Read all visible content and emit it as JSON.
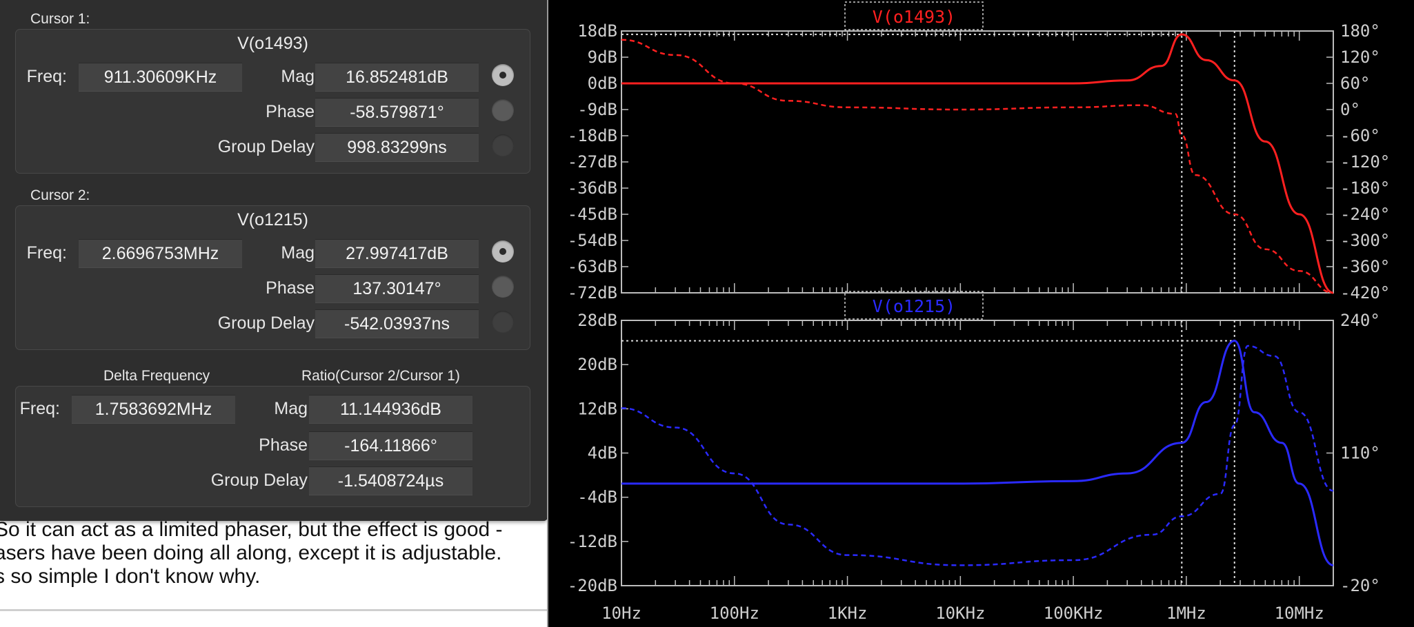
{
  "background_text": {
    "lines": [
      "So it can act as a limited phaser, but the effect is good -",
      "asers have been doing all along, except it is adjustable.",
      "s so simple I don't know why."
    ]
  },
  "cursor_panel": {
    "cursor1": {
      "heading": "Cursor 1:",
      "trace": "V(o1493)",
      "freq_label": "Freq:",
      "freq": "911.30609KHz",
      "mag_label": "Mag:",
      "mag": "16.852481dB",
      "phase_label": "Phase:",
      "phase": "-58.579871°",
      "gd_label": "Group Delay:",
      "gd": "998.83299ns",
      "selected": "mag"
    },
    "cursor2": {
      "heading": "Cursor 2:",
      "trace": "V(o1215)",
      "freq_label": "Freq:",
      "freq": "2.6696753MHz",
      "mag_label": "Mag:",
      "mag": "27.997417dB",
      "phase_label": "Phase:",
      "phase": "137.30147°",
      "gd_label": "Group Delay:",
      "gd": "-542.03937ns",
      "selected": "mag"
    },
    "delta": {
      "delta_heading": "Delta Frequency",
      "ratio_heading": "Ratio(Cursor 2/Cursor 1)",
      "freq_label": "Freq:",
      "freq": "1.7583692MHz",
      "mag_label": "Mag:",
      "mag": "11.144936dB",
      "phase_label": "Phase:",
      "phase": "-164.11866°",
      "gd_label": "Group Delay:",
      "gd": "-1.5408724µs"
    }
  },
  "plot": {
    "x_ticks": [
      "10Hz",
      "100Hz",
      "1KHz",
      "10KHz",
      "100KHz",
      "1MHz",
      "10MHz"
    ],
    "top": {
      "title": "V(o1493)",
      "color": "#ff2020",
      "mag_ticks": [
        "18dB",
        "9dB",
        "0dB",
        "-9dB",
        "-18dB",
        "-27dB",
        "-36dB",
        "-45dB",
        "-54dB",
        "-63dB",
        "-72dB"
      ],
      "phase_ticks": [
        "180°",
        "120°",
        "60°",
        "0°",
        "-60°",
        "-120°",
        "-180°",
        "-240°",
        "-300°",
        "-360°",
        "-420°"
      ]
    },
    "bottom": {
      "title": "V(o1215)",
      "color": "#2a2aff",
      "mag_ticks": [
        "28dB",
        "20dB",
        "12dB",
        "4dB",
        "-4dB",
        "-12dB",
        "-20dB"
      ],
      "phase_ticks": [
        "240°",
        "110°",
        "-20°"
      ]
    },
    "cursor1_freq_hz": 911306,
    "cursor2_freq_hz": 2669675
  },
  "chart_data": [
    {
      "type": "line",
      "title": "V(o1493)",
      "x_scale": "log",
      "xlim": [
        10,
        20000000
      ],
      "ylim": [
        -72,
        18
      ],
      "y2lim": [
        -420,
        180
      ],
      "series": [
        {
          "x": [
            10,
            100,
            1000,
            10000,
            100000,
            300000,
            600000,
            911306,
            1500000,
            2669675,
            5000000,
            10000000,
            20000000
          ],
          "y": [
            0,
            0,
            0,
            0,
            0,
            1,
            6,
            16.85,
            8,
            1,
            -20,
            -45,
            -72
          ]
        },
        {
          "x": [
            10,
            30,
            100,
            300,
            1000,
            10000,
            100000,
            400000,
            800000,
            911306,
            1200000,
            2669675,
            5000000,
            10000000,
            20000000
          ],
          "y": [
            160,
            125,
            60,
            20,
            5,
            0,
            5,
            10,
            -10,
            -58.58,
            -150,
            -240,
            -320,
            -370,
            -420
          ]
        }
      ]
    },
    {
      "type": "line",
      "title": "V(o1215)",
      "x_scale": "log",
      "xlim": [
        10,
        20000000
      ],
      "ylim": [
        -20,
        32
      ],
      "y2lim": [
        -20,
        240
      ],
      "series": [
        {
          "x": [
            10,
            100,
            1000,
            10000,
            100000,
            300000,
            911306,
            1500000,
            2669675,
            4000000,
            7000000,
            10000000,
            20000000
          ],
          "y": [
            0,
            0,
            0,
            0,
            0.5,
            2,
            8,
            16,
            28,
            14,
            8,
            0,
            -16
          ]
        },
        {
          "x": [
            10,
            30,
            100,
            300,
            1000,
            10000,
            100000,
            500000,
            911306,
            2000000,
            2669675,
            3500000,
            6000000,
            10000000,
            20000000
          ],
          "y": [
            154,
            135,
            90,
            40,
            10,
            0,
            5,
            30,
            48,
            70,
            137.3,
            215,
            205,
            150,
            73
          ]
        }
      ]
    }
  ]
}
